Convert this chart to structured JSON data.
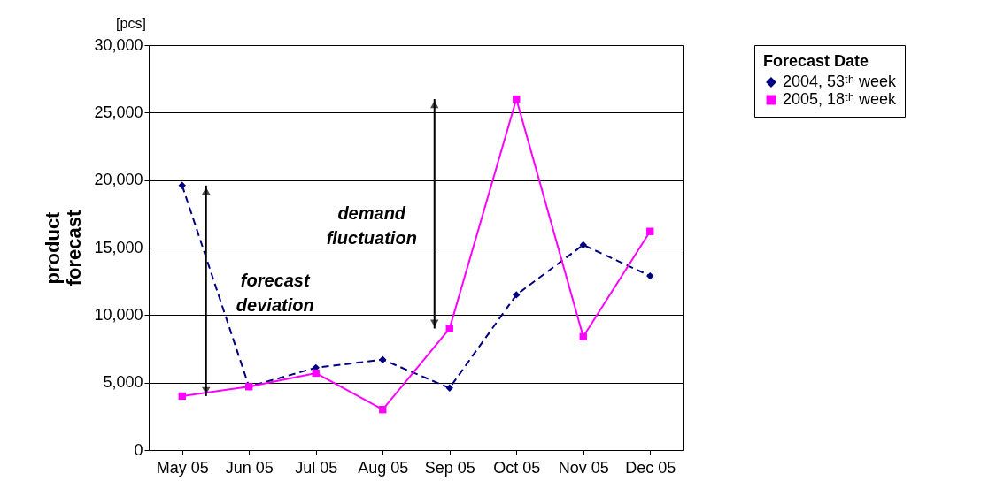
{
  "chart_data": {
    "type": "line",
    "categories": [
      "May 05",
      "Jun 05",
      "Jul 05",
      "Aug 05",
      "Sep 05",
      "Oct 05",
      "Nov 05",
      "Dec 05"
    ],
    "ylabel": "product forecast",
    "legend_title": "Forecast Date",
    "ylim": [
      0,
      30000
    ],
    "yticks": [
      0,
      {
        "value": 5000,
        "label": "5,000"
      },
      {
        "value": 10000,
        "label": "10,000"
      },
      {
        "value": 15000,
        "label": "15,000"
      },
      {
        "value": 20000,
        "label": "20,000"
      },
      {
        "value": 25000,
        "label": "25,000"
      },
      {
        "value": 30000,
        "label": "30,000"
      }
    ],
    "grid": "y",
    "legend": "right",
    "annotations": [
      "[pcs]",
      "forecast deviation",
      "demand fluctuation"
    ],
    "series": [
      {
        "name": "2004, 53ᵗʰ week",
        "color": "#000080",
        "marker": "diamond",
        "line_style": "dashed",
        "values": [
          19600,
          4700,
          6100,
          6700,
          4600,
          11500,
          15200,
          12900
        ]
      },
      {
        "name": "2005, 18ᵗʰ week",
        "color": "#ff00ff",
        "marker": "square",
        "line_style": "solid",
        "values": [
          4000,
          4700,
          5700,
          3000,
          9000,
          26000,
          8400,
          16200
        ]
      }
    ]
  }
}
